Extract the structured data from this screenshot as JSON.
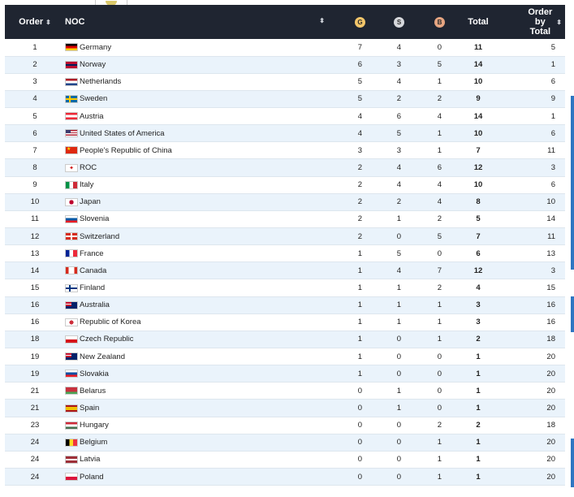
{
  "headers": {
    "order": "Order",
    "noc": "NOC",
    "gold": "G",
    "silver": "S",
    "bronze": "B",
    "total": "Total",
    "order_by_total": "Order by Total"
  },
  "rows": [
    {
      "order": "1",
      "noc": "Germany",
      "gold": "7",
      "silver": "4",
      "bronze": "0",
      "total": "11",
      "order_total": "5",
      "flag": "de"
    },
    {
      "order": "2",
      "noc": "Norway",
      "gold": "6",
      "silver": "3",
      "bronze": "5",
      "total": "14",
      "order_total": "1",
      "flag": "no"
    },
    {
      "order": "3",
      "noc": "Netherlands",
      "gold": "5",
      "silver": "4",
      "bronze": "1",
      "total": "10",
      "order_total": "6",
      "flag": "nl"
    },
    {
      "order": "4",
      "noc": "Sweden",
      "gold": "5",
      "silver": "2",
      "bronze": "2",
      "total": "9",
      "order_total": "9",
      "flag": "se"
    },
    {
      "order": "5",
      "noc": "Austria",
      "gold": "4",
      "silver": "6",
      "bronze": "4",
      "total": "14",
      "order_total": "1",
      "flag": "at"
    },
    {
      "order": "6",
      "noc": "United States of America",
      "gold": "4",
      "silver": "5",
      "bronze": "1",
      "total": "10",
      "order_total": "6",
      "flag": "us"
    },
    {
      "order": "7",
      "noc": "People's Republic of China",
      "gold": "3",
      "silver": "3",
      "bronze": "1",
      "total": "7",
      "order_total": "11",
      "flag": "cn"
    },
    {
      "order": "8",
      "noc": "ROC",
      "gold": "2",
      "silver": "4",
      "bronze": "6",
      "total": "12",
      "order_total": "3",
      "flag": "roc"
    },
    {
      "order": "9",
      "noc": "Italy",
      "gold": "2",
      "silver": "4",
      "bronze": "4",
      "total": "10",
      "order_total": "6",
      "flag": "it"
    },
    {
      "order": "10",
      "noc": "Japan",
      "gold": "2",
      "silver": "2",
      "bronze": "4",
      "total": "8",
      "order_total": "10",
      "flag": "jp"
    },
    {
      "order": "11",
      "noc": "Slovenia",
      "gold": "2",
      "silver": "1",
      "bronze": "2",
      "total": "5",
      "order_total": "14",
      "flag": "si"
    },
    {
      "order": "12",
      "noc": "Switzerland",
      "gold": "2",
      "silver": "0",
      "bronze": "5",
      "total": "7",
      "order_total": "11",
      "flag": "ch"
    },
    {
      "order": "13",
      "noc": "France",
      "gold": "1",
      "silver": "5",
      "bronze": "0",
      "total": "6",
      "order_total": "13",
      "flag": "fr"
    },
    {
      "order": "14",
      "noc": "Canada",
      "gold": "1",
      "silver": "4",
      "bronze": "7",
      "total": "12",
      "order_total": "3",
      "flag": "ca"
    },
    {
      "order": "15",
      "noc": "Finland",
      "gold": "1",
      "silver": "1",
      "bronze": "2",
      "total": "4",
      "order_total": "15",
      "flag": "fi"
    },
    {
      "order": "16",
      "noc": "Australia",
      "gold": "1",
      "silver": "1",
      "bronze": "1",
      "total": "3",
      "order_total": "16",
      "flag": "au"
    },
    {
      "order": "16",
      "noc": "Republic of Korea",
      "gold": "1",
      "silver": "1",
      "bronze": "1",
      "total": "3",
      "order_total": "16",
      "flag": "kr"
    },
    {
      "order": "18",
      "noc": "Czech Republic",
      "gold": "1",
      "silver": "0",
      "bronze": "1",
      "total": "2",
      "order_total": "18",
      "flag": "cz"
    },
    {
      "order": "19",
      "noc": "New Zealand",
      "gold": "1",
      "silver": "0",
      "bronze": "0",
      "total": "1",
      "order_total": "20",
      "flag": "nz"
    },
    {
      "order": "19",
      "noc": "Slovakia",
      "gold": "1",
      "silver": "0",
      "bronze": "0",
      "total": "1",
      "order_total": "20",
      "flag": "sk"
    },
    {
      "order": "21",
      "noc": "Belarus",
      "gold": "0",
      "silver": "1",
      "bronze": "0",
      "total": "1",
      "order_total": "20",
      "flag": "by"
    },
    {
      "order": "21",
      "noc": "Spain",
      "gold": "0",
      "silver": "1",
      "bronze": "0",
      "total": "1",
      "order_total": "20",
      "flag": "es"
    },
    {
      "order": "23",
      "noc": "Hungary",
      "gold": "0",
      "silver": "0",
      "bronze": "2",
      "total": "2",
      "order_total": "18",
      "flag": "hu"
    },
    {
      "order": "24",
      "noc": "Belgium",
      "gold": "0",
      "silver": "0",
      "bronze": "1",
      "total": "1",
      "order_total": "20",
      "flag": "be"
    },
    {
      "order": "24",
      "noc": "Latvia",
      "gold": "0",
      "silver": "0",
      "bronze": "1",
      "total": "1",
      "order_total": "20",
      "flag": "lv"
    },
    {
      "order": "24",
      "noc": "Poland",
      "gold": "0",
      "silver": "0",
      "bronze": "1",
      "total": "1",
      "order_total": "20",
      "flag": "pl"
    }
  ],
  "colors": {
    "header_bg": "#1f2531",
    "row_alt": "#eaf3fb",
    "gold": "#f3c66a",
    "silver": "#d6d8dc",
    "bronze": "#e6a581",
    "accent": "#2f76c2"
  }
}
